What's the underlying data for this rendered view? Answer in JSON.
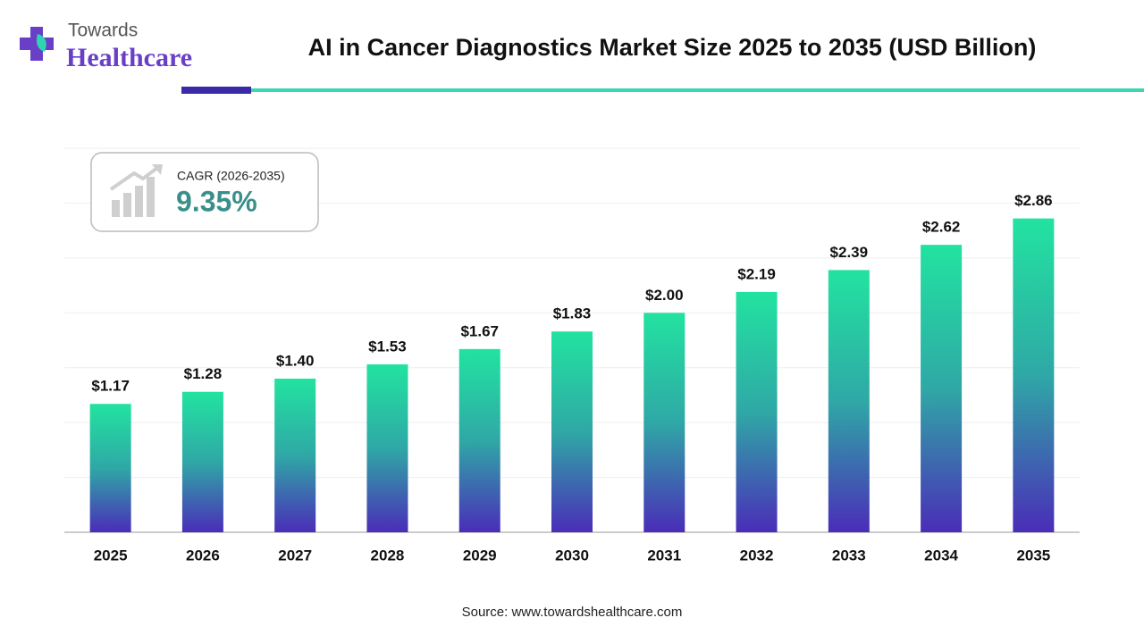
{
  "brand": {
    "line1": "Towards",
    "line2": "Healthcare"
  },
  "chart_data": {
    "type": "bar",
    "title": "AI in Cancer Diagnostics Market Size 2025 to 2035 (USD Billion)",
    "categories": [
      "2025",
      "2026",
      "2027",
      "2028",
      "2029",
      "2030",
      "2031",
      "2032",
      "2033",
      "2034",
      "2035"
    ],
    "values": [
      1.17,
      1.28,
      1.4,
      1.53,
      1.67,
      1.83,
      2.0,
      2.19,
      2.39,
      2.62,
      2.86
    ],
    "value_labels": [
      "$1.17",
      "$1.28",
      "$1.40",
      "$1.53",
      "$1.67",
      "$1.83",
      "$2.00",
      "$2.19",
      "$2.39",
      "$2.62",
      "$2.86"
    ],
    "colors": [
      "#22e3a0",
      "#2fa8a6",
      "#4a2db8"
    ],
    "ylim": [
      0,
      3.5
    ],
    "yticks": [
      0,
      0.5,
      1,
      1.5,
      2,
      2.5,
      3,
      3.5
    ],
    "grid": true,
    "annotation": {
      "label": "CAGR (2026-2035)",
      "value": "9.35%"
    },
    "source": "Source: www.towardshealthcare.com"
  }
}
